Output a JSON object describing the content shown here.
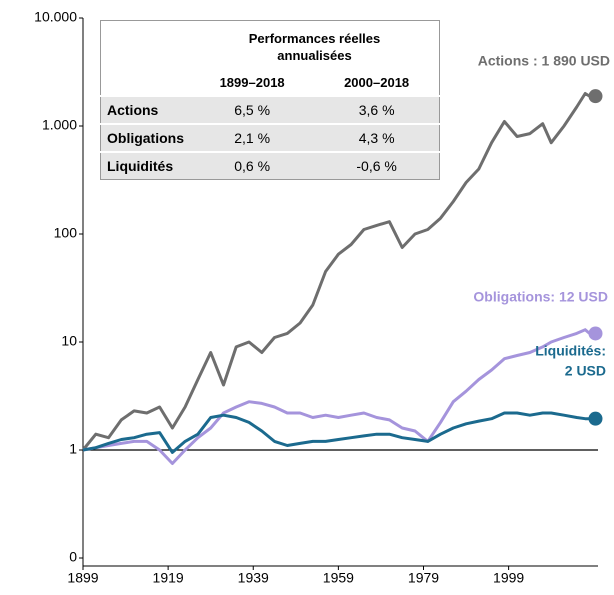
{
  "chart_data": {
    "type": "line",
    "ylog": true,
    "x": [
      1899,
      1902,
      1905,
      1908,
      1911,
      1914,
      1917,
      1920,
      1923,
      1926,
      1929,
      1932,
      1935,
      1938,
      1941,
      1944,
      1947,
      1950,
      1953,
      1956,
      1959,
      1962,
      1965,
      1968,
      1971,
      1974,
      1977,
      1980,
      1983,
      1986,
      1989,
      1992,
      1995,
      1998,
      2001,
      2004,
      2007,
      2009,
      2012,
      2015,
      2017,
      2018
    ],
    "series": [
      {
        "name": "Actions",
        "color": "#6e6e6e",
        "end_label": [
          "Actions : 1 890 USD"
        ],
        "values": [
          1,
          1.4,
          1.3,
          1.9,
          2.3,
          2.2,
          2.5,
          1.6,
          2.5,
          4.5,
          8,
          4,
          9,
          10,
          8,
          11,
          12,
          15,
          22,
          45,
          65,
          80,
          110,
          120,
          130,
          75,
          100,
          110,
          140,
          200,
          300,
          400,
          700,
          1100,
          800,
          850,
          1050,
          700,
          1000,
          1500,
          2000,
          1890
        ]
      },
      {
        "name": "Obligations",
        "color": "#a594dc",
        "end_label": [
          "Obligations: 12 USD"
        ],
        "values": [
          1,
          1.05,
          1.1,
          1.15,
          1.2,
          1.2,
          1.0,
          0.75,
          1.0,
          1.3,
          1.6,
          2.2,
          2.5,
          2.8,
          2.7,
          2.5,
          2.2,
          2.2,
          2.0,
          2.1,
          2.0,
          2.1,
          2.2,
          2.0,
          1.9,
          1.6,
          1.5,
          1.2,
          1.8,
          2.8,
          3.5,
          4.5,
          5.5,
          7,
          7.5,
          8,
          9,
          10,
          11,
          12,
          13,
          12
        ]
      },
      {
        "name": "Liquidités",
        "color": "#1b6a8e",
        "end_label": [
          "Liquidités:",
          "2 USD"
        ],
        "values": [
          1,
          1.05,
          1.15,
          1.25,
          1.3,
          1.4,
          1.45,
          0.95,
          1.2,
          1.4,
          2.0,
          2.1,
          2.0,
          1.8,
          1.5,
          1.2,
          1.1,
          1.15,
          1.2,
          1.2,
          1.25,
          1.3,
          1.35,
          1.4,
          1.4,
          1.3,
          1.25,
          1.2,
          1.4,
          1.6,
          1.75,
          1.85,
          1.95,
          2.2,
          2.2,
          2.1,
          2.2,
          2.2,
          2.1,
          2.0,
          1.95,
          1.95
        ]
      }
    ],
    "xlim": [
      1899,
      2020
    ],
    "xticks": [
      1899,
      1919,
      1939,
      1959,
      1979,
      1999
    ],
    "ylim": [
      0.1,
      10000
    ],
    "yticks": [
      {
        "value": 0.1,
        "label": "0"
      },
      1,
      10,
      100,
      {
        "value": 1000,
        "label": "1.000"
      },
      {
        "value": 10000,
        "label": "10.000"
      }
    ],
    "table": {
      "title": "Performances réelles annualisées",
      "columns": [
        "1899–2018",
        "2000–2018"
      ],
      "rows": [
        [
          "Actions",
          "6,5 %",
          "3,6 %"
        ],
        [
          "Obligations",
          "2,1 %",
          "4,3 %"
        ],
        [
          "Liquidités",
          "0,6 %",
          "-0,6 %"
        ]
      ]
    }
  }
}
